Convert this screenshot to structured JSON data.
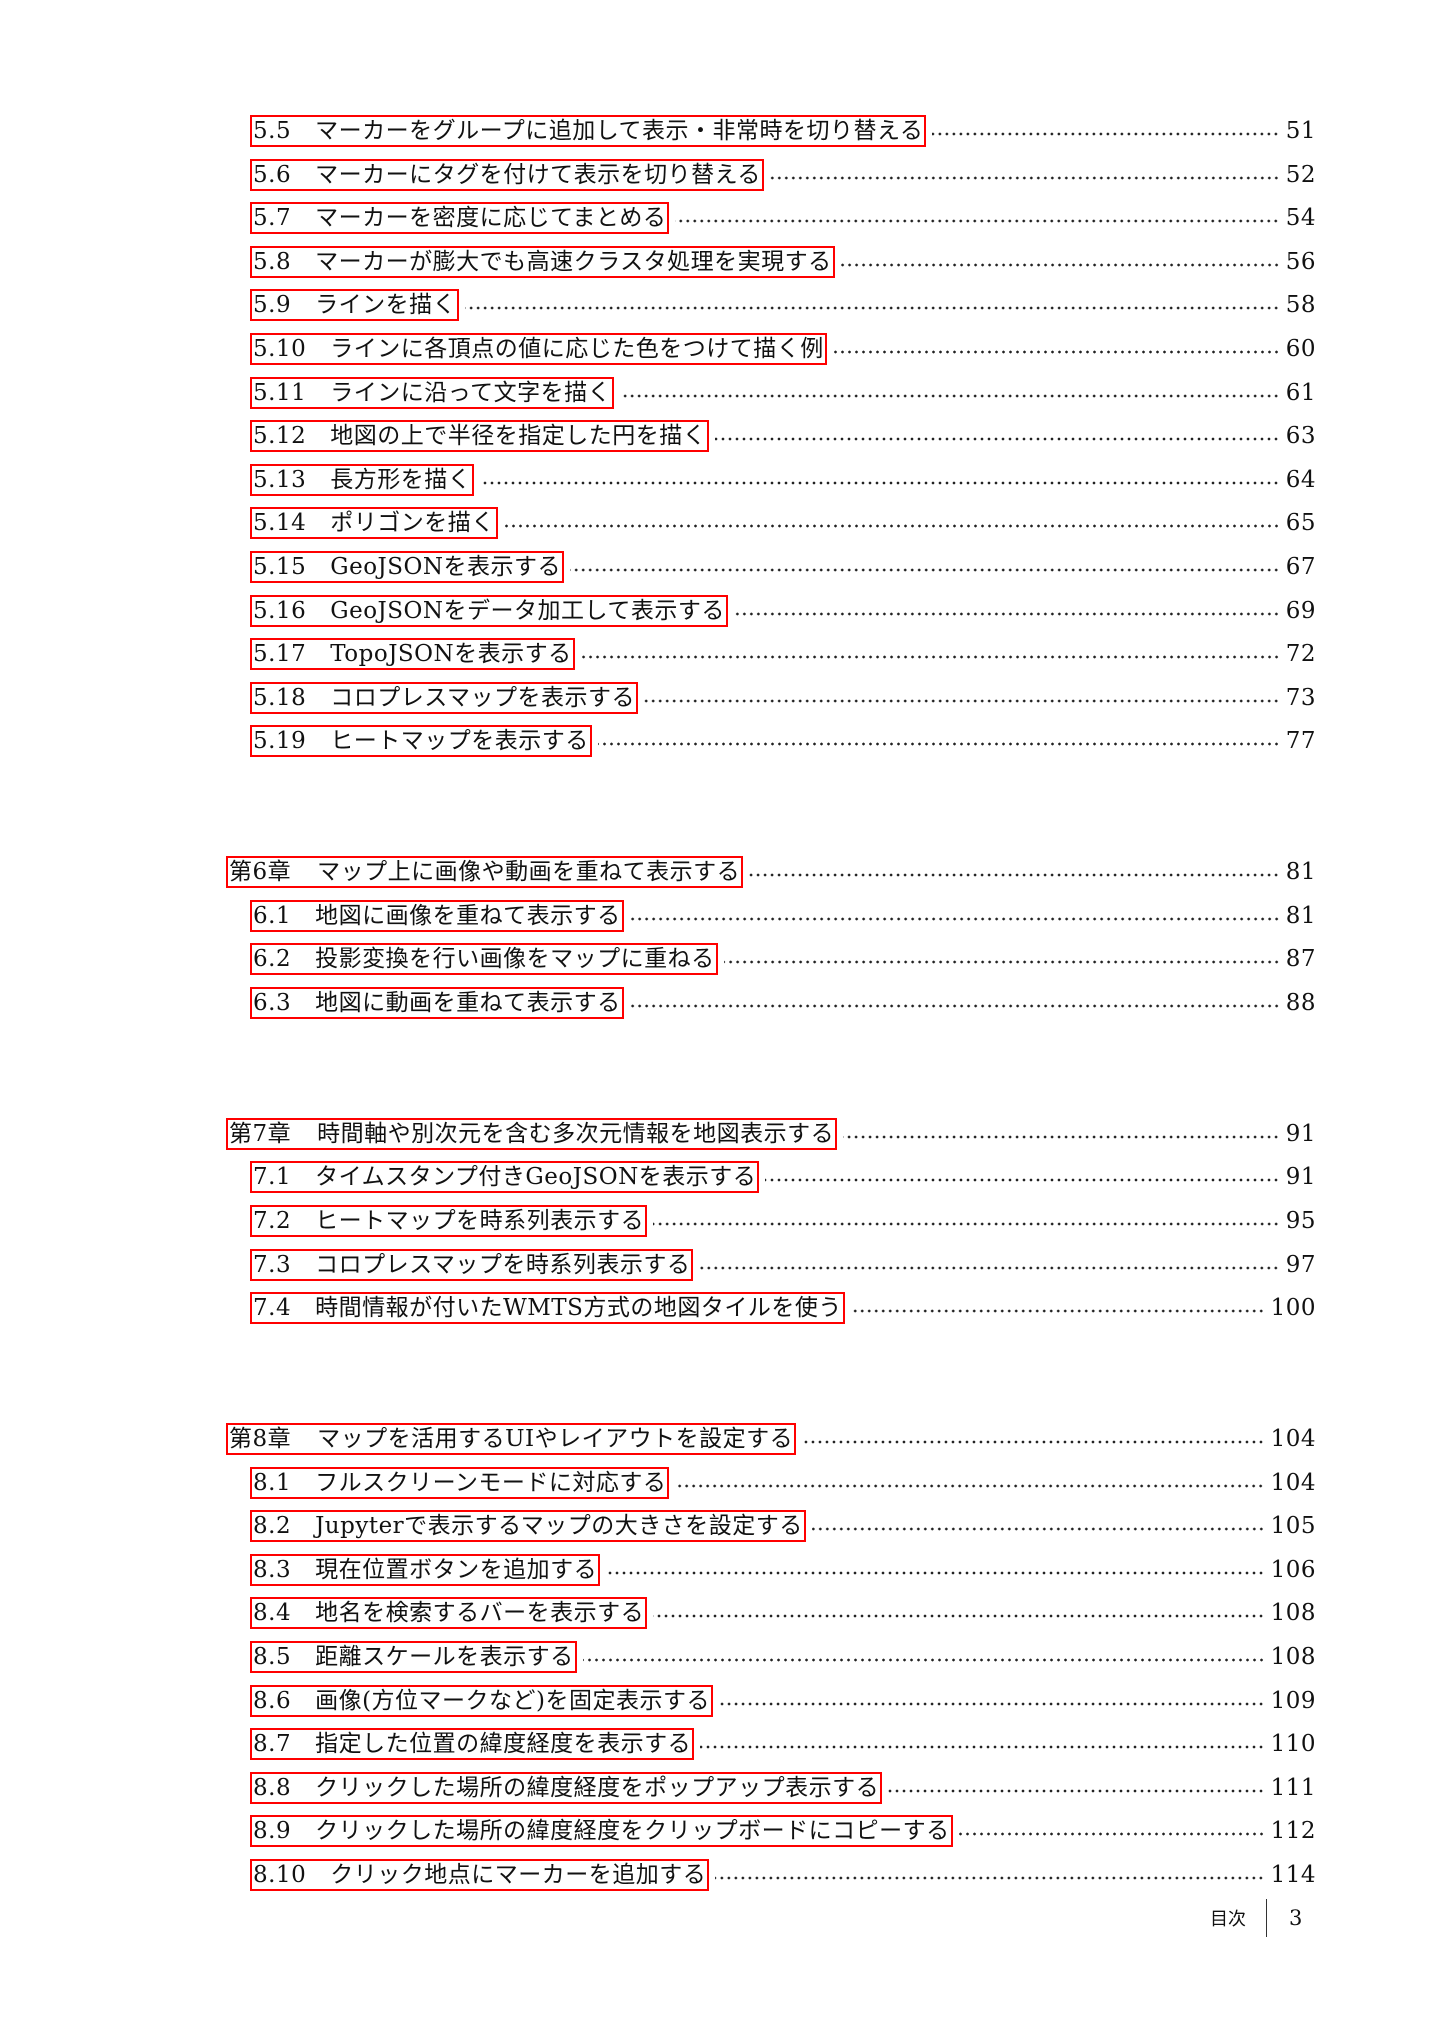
{
  "toc": [
    {
      "type": "section",
      "num": "5.5",
      "title": "マーカーをグループに追加して表示・非常時を切り替える",
      "page": "51"
    },
    {
      "type": "section",
      "num": "5.6",
      "title": "マーカーにタグを付けて表示を切り替える",
      "page": "52"
    },
    {
      "type": "section",
      "num": "5.7",
      "title": "マーカーを密度に応じてまとめる",
      "page": "54"
    },
    {
      "type": "section",
      "num": "5.8",
      "title": "マーカーが膨大でも高速クラスタ処理を実現する",
      "page": "56"
    },
    {
      "type": "section",
      "num": "5.9",
      "title": "ラインを描く",
      "page": "58"
    },
    {
      "type": "section",
      "num": "5.10",
      "title": "ラインに各頂点の値に応じた色をつけて描く例",
      "page": "60"
    },
    {
      "type": "section",
      "num": "5.11",
      "title": "ラインに沿って文字を描く",
      "page": "61"
    },
    {
      "type": "section",
      "num": "5.12",
      "title": "地図の上で半径を指定した円を描く",
      "page": "63"
    },
    {
      "type": "section",
      "num": "5.13",
      "title": "長方形を描く",
      "page": "64"
    },
    {
      "type": "section",
      "num": "5.14",
      "title": "ポリゴンを描く",
      "page": "65"
    },
    {
      "type": "section",
      "num": "5.15",
      "title": "GeoJSONを表示する",
      "page": "67"
    },
    {
      "type": "section",
      "num": "5.16",
      "title": "GeoJSONをデータ加工して表示する",
      "page": "69"
    },
    {
      "type": "section",
      "num": "5.17",
      "title": "TopoJSONを表示する",
      "page": "72"
    },
    {
      "type": "section",
      "num": "5.18",
      "title": "コロプレスマップを表示する",
      "page": "73"
    },
    {
      "type": "section",
      "num": "5.19",
      "title": "ヒートマップを表示する",
      "page": "77"
    },
    {
      "type": "chapter",
      "num": "第6章",
      "title": "マップ上に画像や動画を重ねて表示する",
      "page": "81"
    },
    {
      "type": "section",
      "num": "6.1",
      "title": "地図に画像を重ねて表示する",
      "page": "81"
    },
    {
      "type": "section",
      "num": "6.2",
      "title": "投影変換を行い画像をマップに重ねる",
      "page": "87"
    },
    {
      "type": "section",
      "num": "6.3",
      "title": "地図に動画を重ねて表示する",
      "page": "88"
    },
    {
      "type": "chapter",
      "num": "第7章",
      "title": "時間軸や別次元を含む多次元情報を地図表示する",
      "page": "91"
    },
    {
      "type": "section",
      "num": "7.1",
      "title": "タイムスタンプ付きGeoJSONを表示する",
      "page": "91"
    },
    {
      "type": "section",
      "num": "7.2",
      "title": "ヒートマップを時系列表示する",
      "page": "95"
    },
    {
      "type": "section",
      "num": "7.3",
      "title": "コロプレスマップを時系列表示する",
      "page": "97"
    },
    {
      "type": "section",
      "num": "7.4",
      "title": "時間情報が付いたWMTS方式の地図タイルを使う",
      "page": "100"
    },
    {
      "type": "chapter",
      "num": "第8章",
      "title": "マップを活用するUIやレイアウトを設定する",
      "page": "104"
    },
    {
      "type": "section",
      "num": "8.1",
      "title": "フルスクリーンモードに対応する",
      "page": "104"
    },
    {
      "type": "section",
      "num": "8.2",
      "title": "Jupyterで表示するマップの大きさを設定する",
      "page": "105"
    },
    {
      "type": "section",
      "num": "8.3",
      "title": "現在位置ボタンを追加する",
      "page": "106"
    },
    {
      "type": "section",
      "num": "8.4",
      "title": "地名を検索するバーを表示する",
      "page": "108"
    },
    {
      "type": "section",
      "num": "8.5",
      "title": "距離スケールを表示する",
      "page": "108"
    },
    {
      "type": "section",
      "num": "8.6",
      "title": "画像(方位マークなど)を固定表示する",
      "page": "109"
    },
    {
      "type": "section",
      "num": "8.7",
      "title": "指定した位置の緯度経度を表示する",
      "page": "110"
    },
    {
      "type": "section",
      "num": "8.8",
      "title": "クリックした場所の緯度経度をポップアップ表示する",
      "page": "111"
    },
    {
      "type": "section",
      "num": "8.9",
      "title": "クリックした場所の緯度経度をクリップボードにコピーする",
      "page": "112"
    },
    {
      "type": "section",
      "num": "8.10",
      "title": "クリック地点にマーカーを追加する",
      "page": "114"
    }
  ],
  "highlight_color": "#ff0000",
  "footer": {
    "section_title": "目次",
    "page_number": "3"
  }
}
